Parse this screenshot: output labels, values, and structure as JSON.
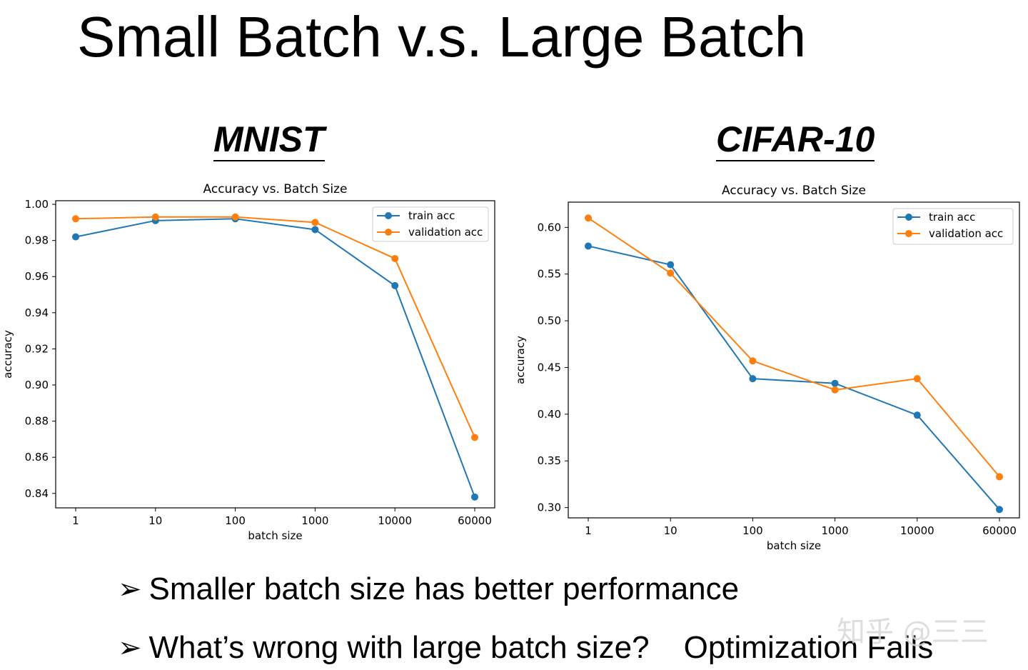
{
  "slide": {
    "title": "Small Batch v.s. Large Batch",
    "bullets": [
      {
        "marker": "➢",
        "text": "Smaller batch size has better performance"
      },
      {
        "marker": "➢",
        "text": "What’s wrong with large batch size?",
        "answer": "Optimization Fails"
      }
    ],
    "watermark": "知乎 @三三"
  },
  "panels": [
    {
      "heading": "MNIST"
    },
    {
      "heading": "CIFAR-10"
    }
  ],
  "colors": {
    "train": "#1f77b4",
    "validation": "#ff7f0e",
    "axis": "#000000"
  },
  "chart_data": [
    {
      "type": "line",
      "title": "Accuracy vs. Batch Size",
      "xlabel": "batch size",
      "ylabel": "accuracy",
      "categories": [
        "1",
        "10",
        "100",
        "1000",
        "10000",
        "60000"
      ],
      "ylim": [
        0.832,
        1.002
      ],
      "yticks": [
        "0.84",
        "0.86",
        "0.88",
        "0.90",
        "0.92",
        "0.94",
        "0.96",
        "0.98",
        "1.00"
      ],
      "legend_position": "top-right",
      "grid": false,
      "series": [
        {
          "name": "train acc",
          "values": [
            0.982,
            0.991,
            0.992,
            0.986,
            0.955,
            0.838
          ]
        },
        {
          "name": "validation acc",
          "values": [
            0.992,
            0.993,
            0.993,
            0.99,
            0.97,
            0.871
          ]
        }
      ]
    },
    {
      "type": "line",
      "title": "Accuracy vs. Batch Size",
      "xlabel": "batch size",
      "ylabel": "accuracy",
      "categories": [
        "1",
        "10",
        "100",
        "1000",
        "10000",
        "60000"
      ],
      "ylim": [
        0.289,
        0.627
      ],
      "yticks": [
        "0.30",
        "0.35",
        "0.40",
        "0.45",
        "0.50",
        "0.55",
        "0.60"
      ],
      "legend_position": "top-right",
      "grid": false,
      "series": [
        {
          "name": "train acc",
          "values": [
            0.58,
            0.56,
            0.438,
            0.433,
            0.399,
            0.298
          ]
        },
        {
          "name": "validation acc",
          "values": [
            0.61,
            0.551,
            0.457,
            0.426,
            0.438,
            0.333
          ]
        }
      ]
    }
  ]
}
